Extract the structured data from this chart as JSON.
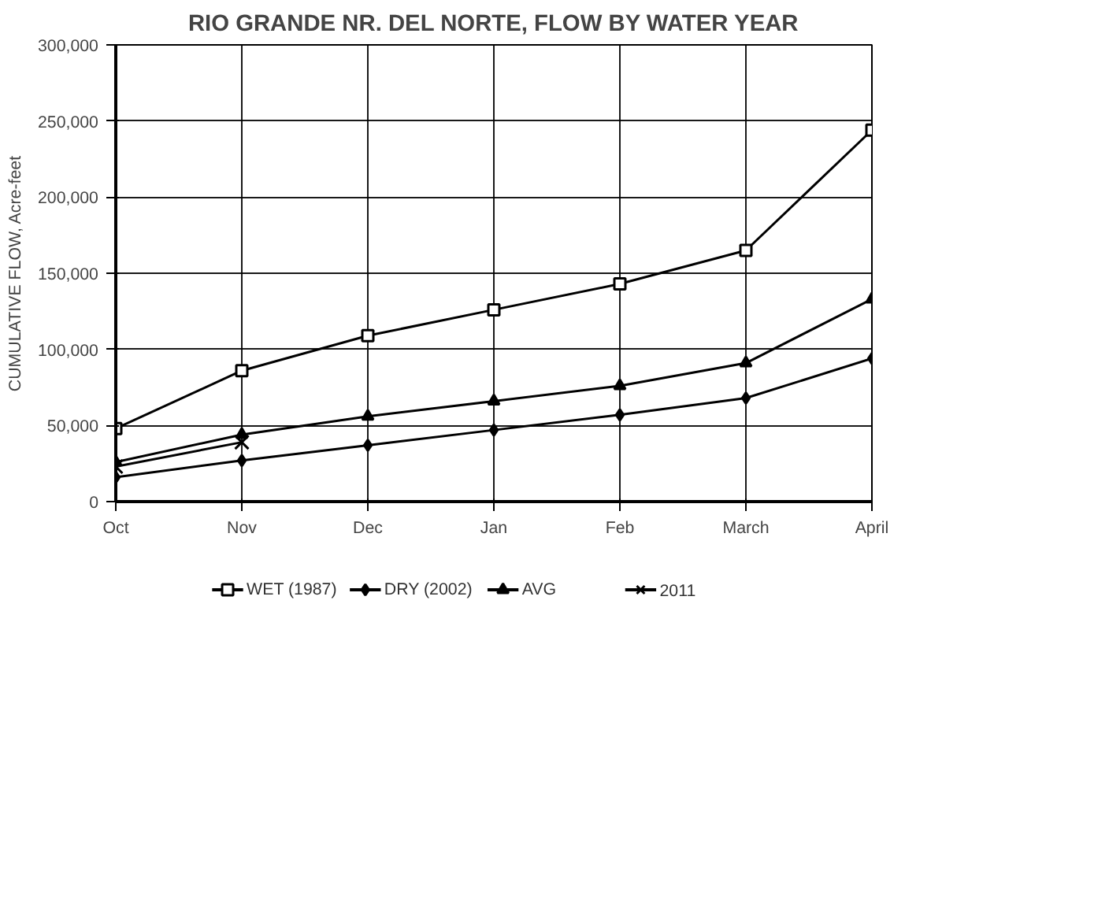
{
  "chart_data": {
    "type": "line",
    "title": "RIO GRANDE NR. DEL NORTE, FLOW BY WATER YEAR",
    "ylabel": "CUMULATIVE FLOW, Acre-feet",
    "categories": [
      "Oct",
      "Nov",
      "Dec",
      "Jan",
      "Feb",
      "March",
      "April"
    ],
    "series": [
      {
        "name": "WET (1987)",
        "color": "#000000",
        "marker": "square",
        "values": [
          48000,
          86000,
          109000,
          126000,
          143000,
          165000,
          244000
        ]
      },
      {
        "name": "DRY (2002)",
        "color": "#000000",
        "marker": "diamond",
        "values": [
          16000,
          27000,
          37000,
          47000,
          57000,
          68000,
          94000
        ]
      },
      {
        "name": "AVG",
        "color": "#000000",
        "marker": "triangle",
        "values": [
          26000,
          44000,
          56000,
          66000,
          76000,
          91000,
          133000
        ]
      },
      {
        "name": "2011",
        "color": "#000000",
        "marker": "cross",
        "values": [
          23000,
          39000,
          null,
          null,
          null,
          null,
          null
        ]
      }
    ],
    "ylim": [
      0,
      300000
    ],
    "yticks": [
      {
        "value": 0,
        "label": "0"
      },
      {
        "value": 50000,
        "label": "50,000"
      },
      {
        "value": 100000,
        "label": "100,000"
      },
      {
        "value": 150000,
        "label": "150,000"
      },
      {
        "value": 200000,
        "label": "200,000"
      },
      {
        "value": 250000,
        "label": "250,000"
      },
      {
        "value": 300000,
        "label": "300,000"
      }
    ],
    "grid": true,
    "legend": "bottom",
    "line_style": "solid"
  }
}
